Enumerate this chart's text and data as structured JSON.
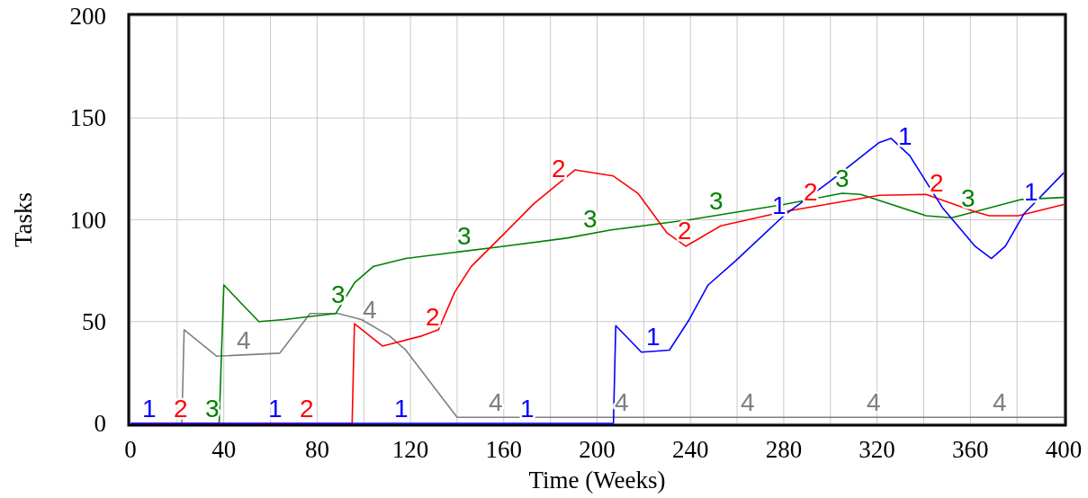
{
  "chart_data": {
    "type": "line",
    "xlabel": "Time (Weeks)",
    "ylabel": "Tasks",
    "xlim": [
      0,
      400
    ],
    "ylim": [
      0,
      200
    ],
    "xticks": [
      0,
      {
        "value": 20,
        "label": null
      },
      40,
      {
        "value": 60,
        "label": null
      },
      80,
      {
        "value": 100,
        "label": null
      },
      120,
      {
        "value": 140,
        "label": null
      },
      160,
      {
        "value": 180,
        "label": null
      },
      200,
      {
        "value": 220,
        "label": null
      },
      240,
      {
        "value": 260,
        "label": null
      },
      280,
      {
        "value": 300,
        "label": null
      },
      320,
      {
        "value": 340,
        "label": null
      },
      360,
      {
        "value": 380,
        "label": null
      },
      400
    ],
    "yticks": [
      0,
      50,
      100,
      150,
      200
    ],
    "grid": true,
    "series": [
      {
        "name": "1",
        "color": "#0000ff",
        "x": [
          0,
          207,
          208,
          219,
          231,
          239.5,
          247.6,
          259.5,
          280,
          300,
          321,
          326,
          334,
          348,
          362,
          369,
          375,
          383,
          400
        ],
        "values": [
          0,
          0,
          48,
          35,
          36,
          51,
          68,
          80,
          102,
          119,
          138,
          140,
          131.5,
          106,
          87,
          81,
          87,
          103,
          123
        ]
      },
      {
        "name": "2",
        "color": "#ff0000",
        "x": [
          0,
          95,
          96,
          108,
          125,
          132,
          139,
          146,
          160,
          173,
          190.5,
          207,
          217.5,
          230,
          238,
          253,
          280,
          321,
          341,
          362,
          368,
          380.6,
          400
        ],
        "values": [
          0,
          0,
          49,
          38,
          43,
          46,
          64.5,
          77,
          93,
          108,
          124.5,
          121.5,
          113,
          93.5,
          87,
          97,
          104,
          112,
          112.5,
          104,
          102,
          102,
          107.5
        ]
      },
      {
        "name": "3",
        "color": "#008000",
        "x": [
          0,
          38,
          40,
          55,
          66,
          88,
          96,
          104,
          118,
          139,
          160,
          187,
          206,
          239.5,
          280,
          305,
          313,
          341,
          352,
          362,
          382,
          400
        ],
        "values": [
          0,
          0,
          68,
          50,
          51,
          54,
          69,
          77,
          81,
          84,
          87,
          91,
          95,
          100,
          107.5,
          113,
          112.5,
          102,
          101,
          104,
          110,
          111
        ]
      },
      {
        "name": "4",
        "color": "#808080",
        "x": [
          0,
          22,
          23,
          37,
          64,
          77,
          89,
          99,
          111,
          118,
          140,
          400
        ],
        "values": [
          0,
          0,
          46,
          33,
          34.5,
          54,
          54,
          51,
          43,
          36,
          3,
          3
        ]
      }
    ]
  }
}
